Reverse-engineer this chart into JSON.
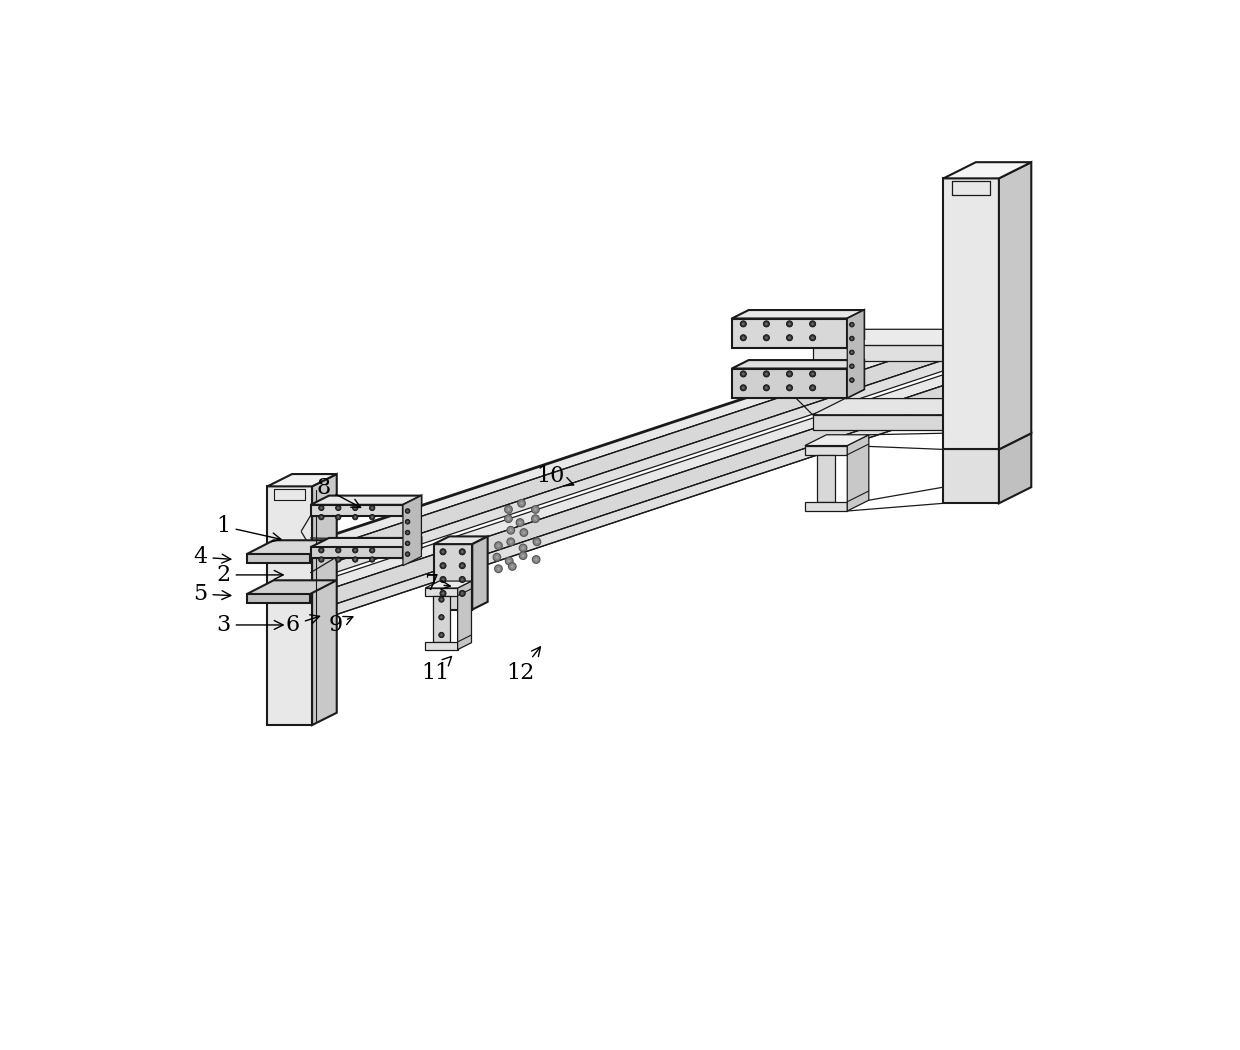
{
  "bg_color": "#ffffff",
  "lc": "#1a1a1a",
  "fc_light": "#f0f0f0",
  "fc_mid": "#d8d8d8",
  "fc_dark": "#b8b8b8",
  "fc_side": "#c8c8c8",
  "figsize": [
    12.4,
    10.5
  ],
  "dpi": 100,
  "labels_info": [
    [
      "1",
      85,
      520,
      165,
      538
    ],
    [
      "2",
      85,
      583,
      168,
      583
    ],
    [
      "3",
      85,
      648,
      168,
      648
    ],
    [
      "4",
      55,
      560,
      100,
      563
    ],
    [
      "5",
      55,
      608,
      100,
      610
    ],
    [
      "6",
      175,
      648,
      215,
      635
    ],
    [
      "7",
      355,
      595,
      385,
      598
    ],
    [
      "8",
      215,
      470,
      268,
      498
    ],
    [
      "9",
      230,
      648,
      258,
      635
    ],
    [
      "10",
      510,
      455,
      545,
      468
    ],
    [
      "11",
      360,
      710,
      385,
      685
    ],
    [
      "12",
      470,
      710,
      500,
      672
    ]
  ]
}
